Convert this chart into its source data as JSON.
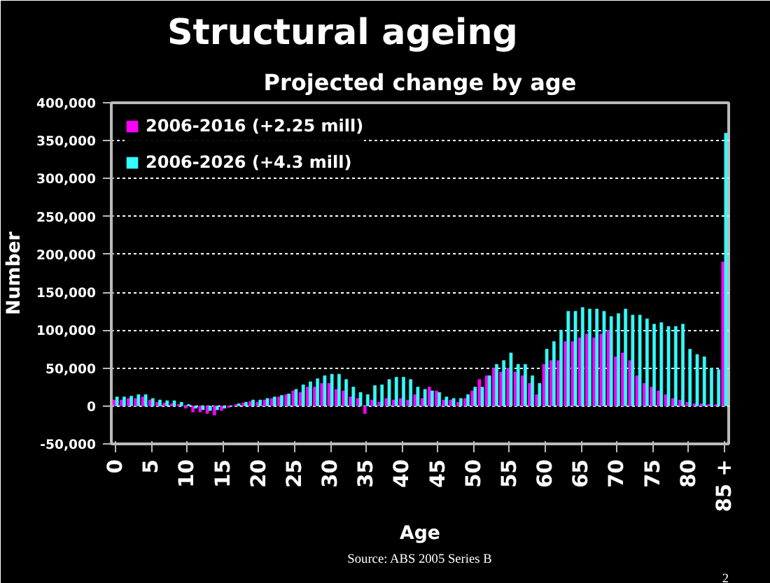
{
  "chart_data": {
    "type": "bar",
    "title": "Structural ageing",
    "subtitle": "Projected change by age",
    "xlabel": "Age",
    "ylabel": "Number",
    "categories": [
      "0",
      null,
      null,
      null,
      null,
      "5",
      null,
      null,
      null,
      null,
      "10",
      null,
      null,
      null,
      null,
      "15",
      null,
      null,
      null,
      null,
      "20",
      null,
      null,
      null,
      null,
      "25",
      null,
      null,
      null,
      null,
      "30",
      null,
      null,
      null,
      null,
      "35",
      null,
      null,
      null,
      null,
      "40",
      null,
      null,
      null,
      null,
      "45",
      null,
      null,
      null,
      null,
      "50",
      null,
      null,
      null,
      null,
      "55",
      null,
      null,
      null,
      null,
      "60",
      null,
      null,
      null,
      null,
      "65",
      null,
      null,
      null,
      null,
      "70",
      null,
      null,
      null,
      null,
      "75",
      null,
      null,
      null,
      null,
      "80",
      null,
      null,
      null,
      null,
      "85 +"
    ],
    "series": [
      {
        "name": "2006-2016 (+2.25 mill)",
        "color": "#ff00ff",
        "values": [
          8000,
          8000,
          10000,
          10000,
          12000,
          8000,
          5000,
          4000,
          3000,
          2000,
          -3000,
          -8000,
          -8000,
          -10000,
          -12000,
          -6000,
          -2000,
          2000,
          4000,
          6000,
          5000,
          8000,
          10000,
          12000,
          15000,
          20000,
          18000,
          25000,
          25000,
          30000,
          30000,
          22000,
          20000,
          12000,
          10000,
          -10000,
          8000,
          5000,
          10000,
          8000,
          10000,
          8000,
          15000,
          10000,
          25000,
          20000,
          8000,
          8000,
          5000,
          10000,
          20000,
          35000,
          40000,
          50000,
          45000,
          50000,
          45000,
          40000,
          30000,
          15000,
          55000,
          60000,
          60000,
          85000,
          85000,
          90000,
          95000,
          90000,
          95000,
          100000,
          65000,
          70000,
          60000,
          40000,
          30000,
          25000,
          20000,
          15000,
          10000,
          8000,
          5000,
          3000,
          3000,
          2000,
          2000,
          190000
        ]
      },
      {
        "name": "2006-2026 (+4.3 mill)",
        "color": "#33ffff",
        "values": [
          12000,
          12000,
          13000,
          15000,
          15000,
          10000,
          8000,
          7000,
          7000,
          5000,
          2000,
          -3000,
          -5000,
          -6000,
          -5000,
          -3000,
          0,
          3000,
          5000,
          8000,
          8000,
          10000,
          12000,
          14000,
          16000,
          22000,
          28000,
          32000,
          36000,
          40000,
          42000,
          42000,
          35000,
          25000,
          18000,
          15000,
          27000,
          28000,
          35000,
          38000,
          38000,
          35000,
          25000,
          22000,
          20000,
          18000,
          12000,
          10000,
          10000,
          15000,
          25000,
          25000,
          40000,
          55000,
          60000,
          70000,
          55000,
          55000,
          40000,
          30000,
          75000,
          85000,
          100000,
          125000,
          125000,
          130000,
          128000,
          128000,
          125000,
          118000,
          122000,
          128000,
          120000,
          120000,
          115000,
          108000,
          110000,
          105000,
          105000,
          108000,
          75000,
          68000,
          65000,
          50000,
          48000,
          360000
        ]
      }
    ],
    "ylim": [
      -50000,
      400000
    ],
    "yticks": [
      {
        "value": -50000,
        "label": "-50,000"
      },
      0,
      {
        "value": 50000,
        "label": "50,000"
      },
      {
        "value": 100000,
        "label": "100,000"
      },
      {
        "value": 150000,
        "label": "150,000"
      },
      {
        "value": 200000,
        "label": "200,000"
      },
      {
        "value": 250000,
        "label": "250,000"
      },
      {
        "value": 300000,
        "label": "300,000"
      },
      {
        "value": 350000,
        "label": "350,000"
      },
      {
        "value": 400000,
        "label": "400,000"
      }
    ],
    "grid": "y",
    "legend": "top left",
    "annotations": [
      "Source: ABS 2005 Series B",
      "2"
    ]
  }
}
